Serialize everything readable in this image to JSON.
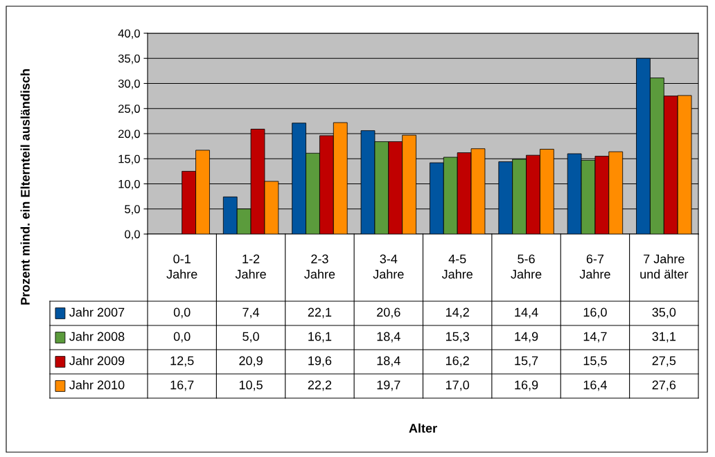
{
  "chart_data": {
    "type": "bar",
    "annotations": [
      "Prozent mind. ein Elternteil ausländisch",
      "Alter"
    ],
    "categories": [
      "0-1\nJahre",
      "1-2\nJahre",
      "2-3\nJahre",
      "3-4\nJahre",
      "4-5\nJahre",
      "5-6\nJahre",
      "6-7\nJahre",
      "7 Jahre\nund älter"
    ],
    "series": [
      {
        "name": "Jahr 2007",
        "color": "#0055a0",
        "values": [
          0.0,
          7.4,
          22.1,
          20.6,
          14.2,
          14.4,
          16.0,
          35.0
        ],
        "value_labels": [
          "0,0",
          "7,4",
          "22,1",
          "20,6",
          "14,2",
          "14,4",
          "16,0",
          "35,0"
        ]
      },
      {
        "name": "Jahr 2008",
        "color": "#5b9b3c",
        "values": [
          0.0,
          5.0,
          16.1,
          18.4,
          15.3,
          14.9,
          14.7,
          31.1
        ],
        "value_labels": [
          "0,0",
          "5,0",
          "16,1",
          "18,4",
          "15,3",
          "14,9",
          "14,7",
          "31,1"
        ]
      },
      {
        "name": "Jahr 2009",
        "color": "#c00000",
        "values": [
          12.5,
          20.9,
          19.6,
          18.4,
          16.2,
          15.7,
          15.5,
          27.5
        ],
        "value_labels": [
          "12,5",
          "20,9",
          "19,6",
          "18,4",
          "16,2",
          "15,7",
          "15,5",
          "27,5"
        ]
      },
      {
        "name": "Jahr 2010",
        "color": "#ff8c00",
        "values": [
          16.7,
          10.5,
          22.2,
          19.7,
          17.0,
          16.9,
          16.4,
          27.6
        ],
        "value_labels": [
          "16,7",
          "10,5",
          "22,2",
          "19,7",
          "17,0",
          "16,9",
          "16,4",
          "27,6"
        ]
      }
    ],
    "ylim": [
      0,
      40
    ],
    "yticks": [
      {
        "value": 0,
        "label": "0,0"
      },
      {
        "value": 5,
        "label": "5,0"
      },
      {
        "value": 10,
        "label": "10,0"
      },
      {
        "value": 15,
        "label": "15,0"
      },
      {
        "value": 20,
        "label": "20,0"
      },
      {
        "value": 25,
        "label": "25,0"
      },
      {
        "value": 30,
        "label": "30,0"
      },
      {
        "value": 35,
        "label": "35,0"
      },
      {
        "value": 40,
        "label": "40,0"
      }
    ],
    "grid": "y",
    "legend": "bottom left"
  }
}
